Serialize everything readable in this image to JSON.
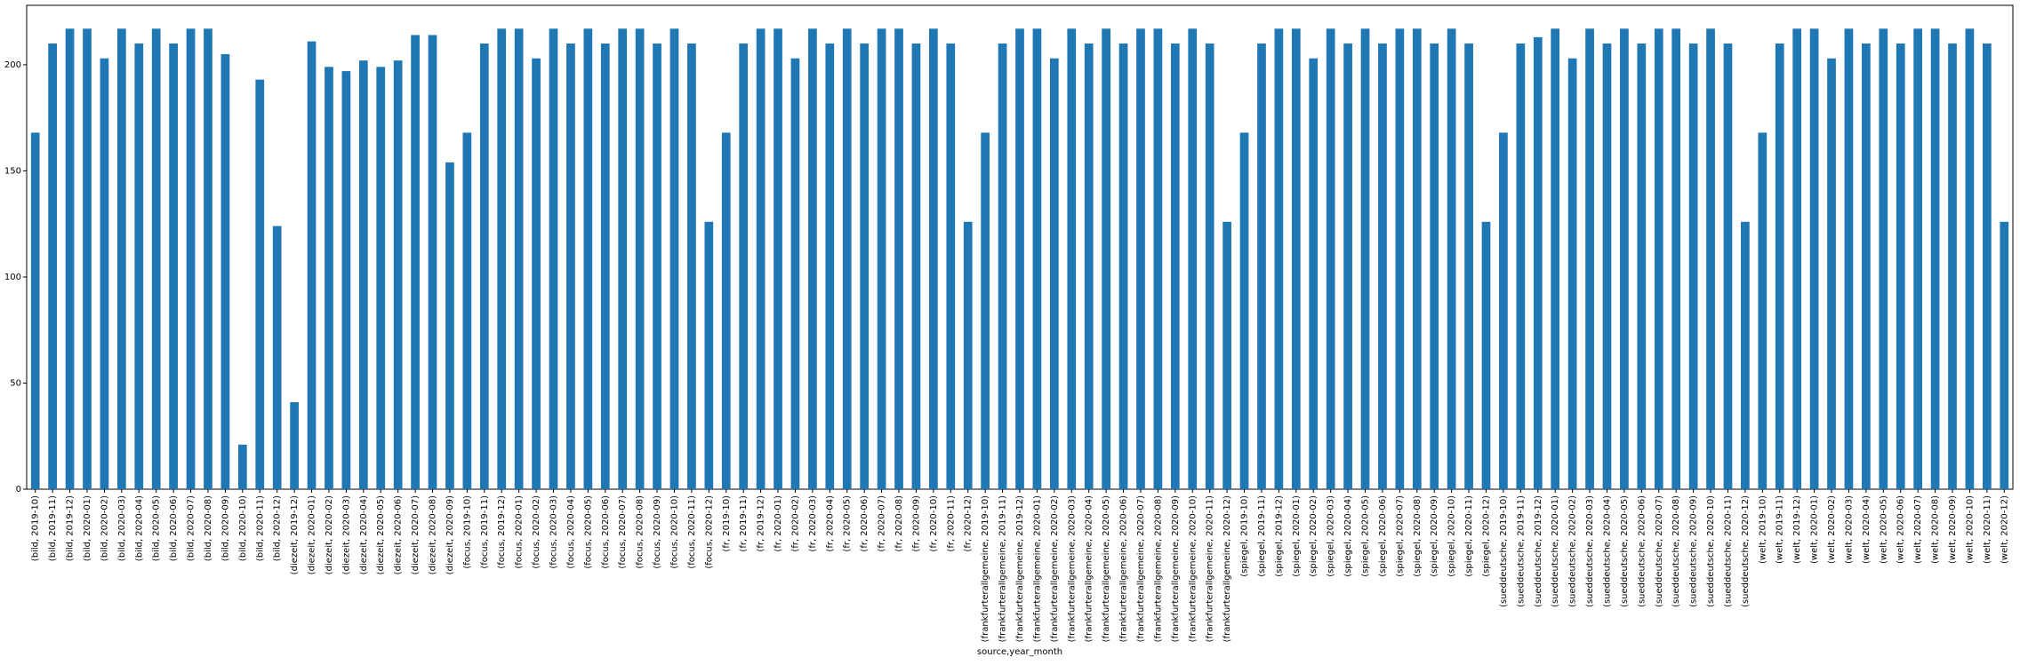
{
  "chart_data": {
    "type": "bar",
    "xlabel": "source,year_month",
    "ylabel": "",
    "ylim": [
      0,
      228
    ],
    "yticks": [
      0,
      50,
      100,
      150,
      200
    ],
    "grid": false,
    "legend": "none",
    "bar_color": "#1f77b4",
    "categories": [
      "(bild, 2019-10)",
      "(bild, 2019-11)",
      "(bild, 2019-12)",
      "(bild, 2020-01)",
      "(bild, 2020-02)",
      "(bild, 2020-03)",
      "(bild, 2020-04)",
      "(bild, 2020-05)",
      "(bild, 2020-06)",
      "(bild, 2020-07)",
      "(bild, 2020-08)",
      "(bild, 2020-09)",
      "(bild, 2020-10)",
      "(bild, 2020-11)",
      "(bild, 2020-12)",
      "(diezeit, 2019-12)",
      "(diezeit, 2020-01)",
      "(diezeit, 2020-02)",
      "(diezeit, 2020-03)",
      "(diezeit, 2020-04)",
      "(diezeit, 2020-05)",
      "(diezeit, 2020-06)",
      "(diezeit, 2020-07)",
      "(diezeit, 2020-08)",
      "(diezeit, 2020-09)",
      "(focus, 2019-10)",
      "(focus, 2019-11)",
      "(focus, 2019-12)",
      "(focus, 2020-01)",
      "(focus, 2020-02)",
      "(focus, 2020-03)",
      "(focus, 2020-04)",
      "(focus, 2020-05)",
      "(focus, 2020-06)",
      "(focus, 2020-07)",
      "(focus, 2020-08)",
      "(focus, 2020-09)",
      "(focus, 2020-10)",
      "(focus, 2020-11)",
      "(focus, 2020-12)",
      "(fr, 2019-10)",
      "(fr, 2019-11)",
      "(fr, 2019-12)",
      "(fr, 2020-01)",
      "(fr, 2020-02)",
      "(fr, 2020-03)",
      "(fr, 2020-04)",
      "(fr, 2020-05)",
      "(fr, 2020-06)",
      "(fr, 2020-07)",
      "(fr, 2020-08)",
      "(fr, 2020-09)",
      "(fr, 2020-10)",
      "(fr, 2020-11)",
      "(fr, 2020-12)",
      "(frankfurterallgemeine, 2019-10)",
      "(frankfurterallgemeine, 2019-11)",
      "(frankfurterallgemeine, 2019-12)",
      "(frankfurterallgemeine, 2020-01)",
      "(frankfurterallgemeine, 2020-02)",
      "(frankfurterallgemeine, 2020-03)",
      "(frankfurterallgemeine, 2020-04)",
      "(frankfurterallgemeine, 2020-05)",
      "(frankfurterallgemeine, 2020-06)",
      "(frankfurterallgemeine, 2020-07)",
      "(frankfurterallgemeine, 2020-08)",
      "(frankfurterallgemeine, 2020-09)",
      "(frankfurterallgemeine, 2020-10)",
      "(frankfurterallgemeine, 2020-11)",
      "(frankfurterallgemeine, 2020-12)",
      "(spiegel, 2019-10)",
      "(spiegel, 2019-11)",
      "(spiegel, 2019-12)",
      "(spiegel, 2020-01)",
      "(spiegel, 2020-02)",
      "(spiegel, 2020-03)",
      "(spiegel, 2020-04)",
      "(spiegel, 2020-05)",
      "(spiegel, 2020-06)",
      "(spiegel, 2020-07)",
      "(spiegel, 2020-08)",
      "(spiegel, 2020-09)",
      "(spiegel, 2020-10)",
      "(spiegel, 2020-11)",
      "(spiegel, 2020-12)",
      "(sueddeutsche, 2019-10)",
      "(sueddeutsche, 2019-11)",
      "(sueddeutsche, 2019-12)",
      "(sueddeutsche, 2020-01)",
      "(sueddeutsche, 2020-02)",
      "(sueddeutsche, 2020-03)",
      "(sueddeutsche, 2020-04)",
      "(sueddeutsche, 2020-05)",
      "(sueddeutsche, 2020-06)",
      "(sueddeutsche, 2020-07)",
      "(sueddeutsche, 2020-08)",
      "(sueddeutsche, 2020-09)",
      "(sueddeutsche, 2020-10)",
      "(sueddeutsche, 2020-11)",
      "(sueddeutsche, 2020-12)",
      "(welt, 2019-10)",
      "(welt, 2019-11)",
      "(welt, 2019-12)",
      "(welt, 2020-01)",
      "(welt, 2020-02)",
      "(welt, 2020-03)",
      "(welt, 2020-04)",
      "(welt, 2020-05)",
      "(welt, 2020-06)",
      "(welt, 2020-07)",
      "(welt, 2020-08)",
      "(welt, 2020-09)",
      "(welt, 2020-10)",
      "(welt, 2020-11)",
      "(welt, 2020-12)"
    ],
    "values": [
      168,
      210,
      217,
      217,
      203,
      217,
      210,
      217,
      210,
      217,
      217,
      205,
      21,
      193,
      124,
      41,
      211,
      199,
      197,
      202,
      199,
      202,
      214,
      214,
      154,
      168,
      210,
      217,
      217,
      203,
      217,
      210,
      217,
      210,
      217,
      217,
      210,
      217,
      210,
      126,
      168,
      210,
      217,
      217,
      203,
      217,
      210,
      217,
      210,
      217,
      217,
      210,
      217,
      210,
      126,
      168,
      210,
      217,
      217,
      203,
      217,
      210,
      217,
      210,
      217,
      217,
      210,
      217,
      210,
      126,
      168,
      210,
      217,
      217,
      203,
      217,
      210,
      217,
      210,
      217,
      217,
      210,
      217,
      210,
      126,
      168,
      210,
      213,
      217,
      203,
      217,
      210,
      217,
      210,
      217,
      217,
      210,
      217,
      210,
      126,
      168,
      210,
      217,
      217,
      203,
      217,
      210,
      217,
      210,
      217,
      217,
      210,
      217,
      210,
      126
    ]
  }
}
